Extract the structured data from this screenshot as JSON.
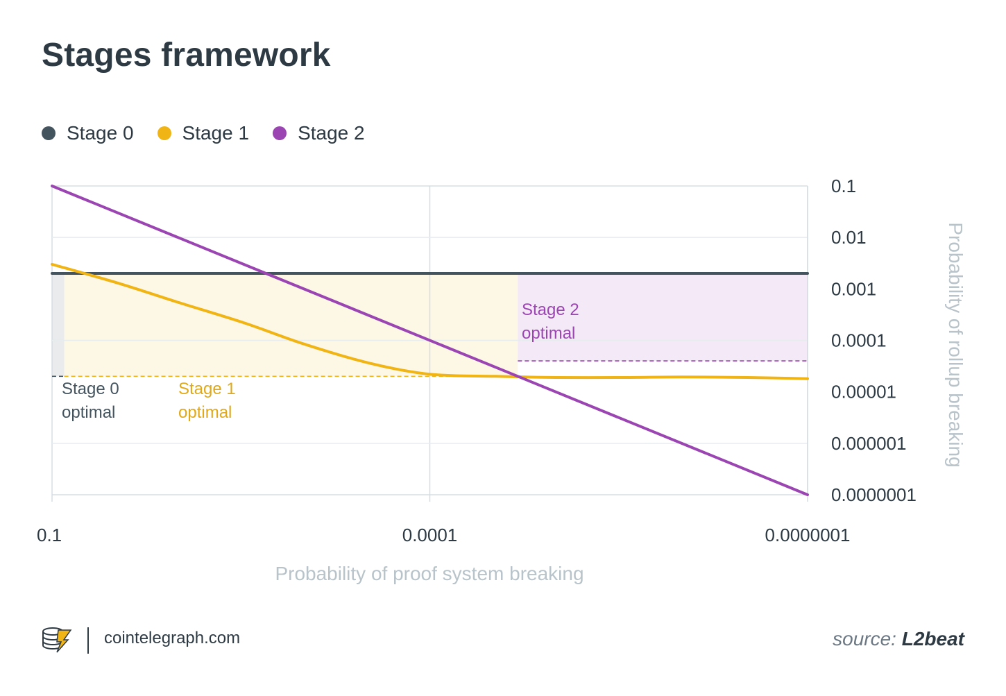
{
  "title": "Stages framework",
  "legend": [
    {
      "label": "Stage 0",
      "color": "#44545f"
    },
    {
      "label": "Stage 1",
      "color": "#f0b514"
    },
    {
      "label": "Stage 2",
      "color": "#9b45b3"
    }
  ],
  "chart_data": {
    "type": "line",
    "title": "Stages framework",
    "x_scale": "log",
    "y_scale": "log",
    "x_axis_reversed": true,
    "xlabel": "Probability of proof system breaking",
    "ylabel": "Probability of rollup breaking",
    "xlim": [
      0.1,
      1e-07
    ],
    "ylim": [
      1e-07,
      0.1
    ],
    "x_ticks": [
      "0.1",
      "0.0001",
      "0.0000001"
    ],
    "y_ticks": [
      "0.1",
      "0.01",
      "0.001",
      "0.0001",
      "0.00001",
      "0.000001",
      "0.0000001"
    ],
    "grid": true,
    "legend_position": "top-left",
    "series": [
      {
        "name": "Stage 0",
        "color": "#44545f",
        "x": [
          0.1,
          1e-07
        ],
        "y": [
          0.002,
          0.002
        ]
      },
      {
        "name": "Stage 1",
        "color": "#f0b514",
        "x": [
          0.1,
          0.03,
          0.01,
          0.003,
          0.001,
          0.0003,
          0.0001,
          3e-05,
          1e-05,
          3e-06,
          1e-06,
          3e-07,
          1e-07
        ],
        "y": [
          0.003,
          0.0013,
          0.00055,
          0.00022,
          8.5e-05,
          3.6e-05,
          2.2e-05,
          2e-05,
          1.9e-05,
          1.9e-05,
          1.95e-05,
          1.9e-05,
          1.8e-05
        ]
      },
      {
        "name": "Stage 2",
        "color": "#9b45b3",
        "x": [
          0.1,
          1e-07
        ],
        "y": [
          0.1,
          1e-07
        ]
      }
    ],
    "regions": [
      {
        "label": "Stage 0 optimal",
        "color": "#e9ebed",
        "x_range": [
          0.1,
          0.08
        ],
        "y_range": [
          2e-05,
          0.002
        ]
      },
      {
        "label": "Stage 1 optimal",
        "color": "#fdf7e6",
        "x_range": [
          0.08,
          2e-05
        ],
        "y_range": [
          2e-05,
          0.002
        ]
      },
      {
        "label": "Stage 2 optimal",
        "color": "#f4e9f7",
        "x_range": [
          2e-05,
          1e-07
        ],
        "y_range": [
          4e-05,
          0.002
        ]
      }
    ],
    "thresholds": [
      {
        "color": "#44545f",
        "y": 2e-05,
        "x_range": [
          0.1,
          0.08
        ]
      },
      {
        "color": "#f0b514",
        "y": 2e-05,
        "x_range": [
          0.08,
          2e-05
        ]
      },
      {
        "color": "#9b45b3",
        "y": 4e-05,
        "x_range": [
          2e-05,
          1e-07
        ]
      }
    ],
    "annotations": [
      {
        "lines": [
          "Stage 0",
          "optimal"
        ],
        "color": "#44545f"
      },
      {
        "lines": [
          "Stage 1",
          "optimal"
        ],
        "color": "#e0a81c"
      },
      {
        "lines": [
          "Stage 2",
          "optimal"
        ],
        "color": "#9b45b3"
      }
    ]
  },
  "footer": {
    "site": "cointelegraph.com",
    "source_prefix": "source: ",
    "source_name": "L2beat"
  }
}
